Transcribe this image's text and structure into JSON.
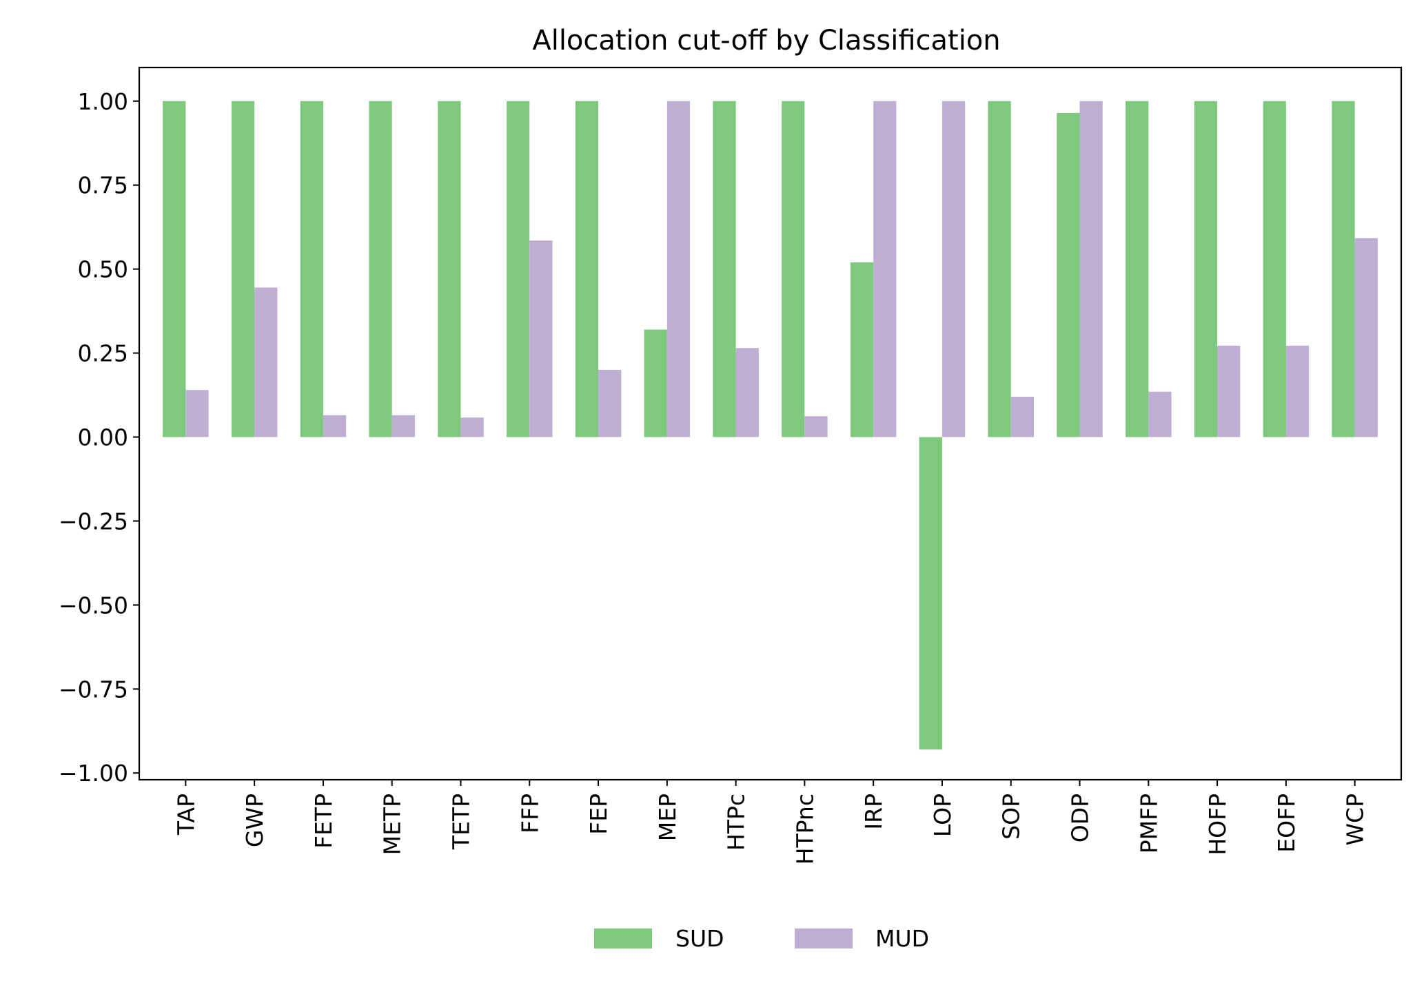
{
  "chart_data": {
    "type": "bar",
    "title": "Allocation cut-off by Classification",
    "xlabel": "",
    "ylabel": "",
    "ylim": [
      -1.02,
      1.1
    ],
    "yticks": [
      1.0,
      0.75,
      0.5,
      0.25,
      0.0,
      -0.25,
      -0.5,
      -0.75,
      -1.0
    ],
    "ytick_labels": [
      "1.00",
      "0.75",
      "0.50",
      "0.25",
      "0.00",
      "−0.25",
      "−0.50",
      "−0.75",
      "−1.00"
    ],
    "grid": false,
    "legend_placement": "bottom-center",
    "categories": [
      "TAP",
      "GWP",
      "FETP",
      "METP",
      "TETP",
      "FFP",
      "FEP",
      "MEP",
      "HTPc",
      "HTPnc",
      "IRP",
      "LOP",
      "SOP",
      "ODP",
      "PMFP",
      "HOFP",
      "EOFP",
      "WCP"
    ],
    "series": [
      {
        "name": "SUD",
        "color": "#7fc97f",
        "values": [
          1.0,
          1.0,
          1.0,
          1.0,
          1.0,
          1.0,
          1.0,
          0.32,
          1.0,
          1.0,
          0.52,
          -0.93,
          1.0,
          0.965,
          1.0,
          1.0,
          1.0,
          1.0
        ]
      },
      {
        "name": "MUD",
        "color": "#beaed4",
        "values": [
          0.14,
          0.445,
          0.065,
          0.065,
          0.058,
          0.585,
          0.2,
          1.0,
          0.265,
          0.062,
          1.0,
          1.0,
          0.12,
          1.0,
          0.135,
          0.272,
          0.272,
          0.592
        ]
      }
    ]
  }
}
